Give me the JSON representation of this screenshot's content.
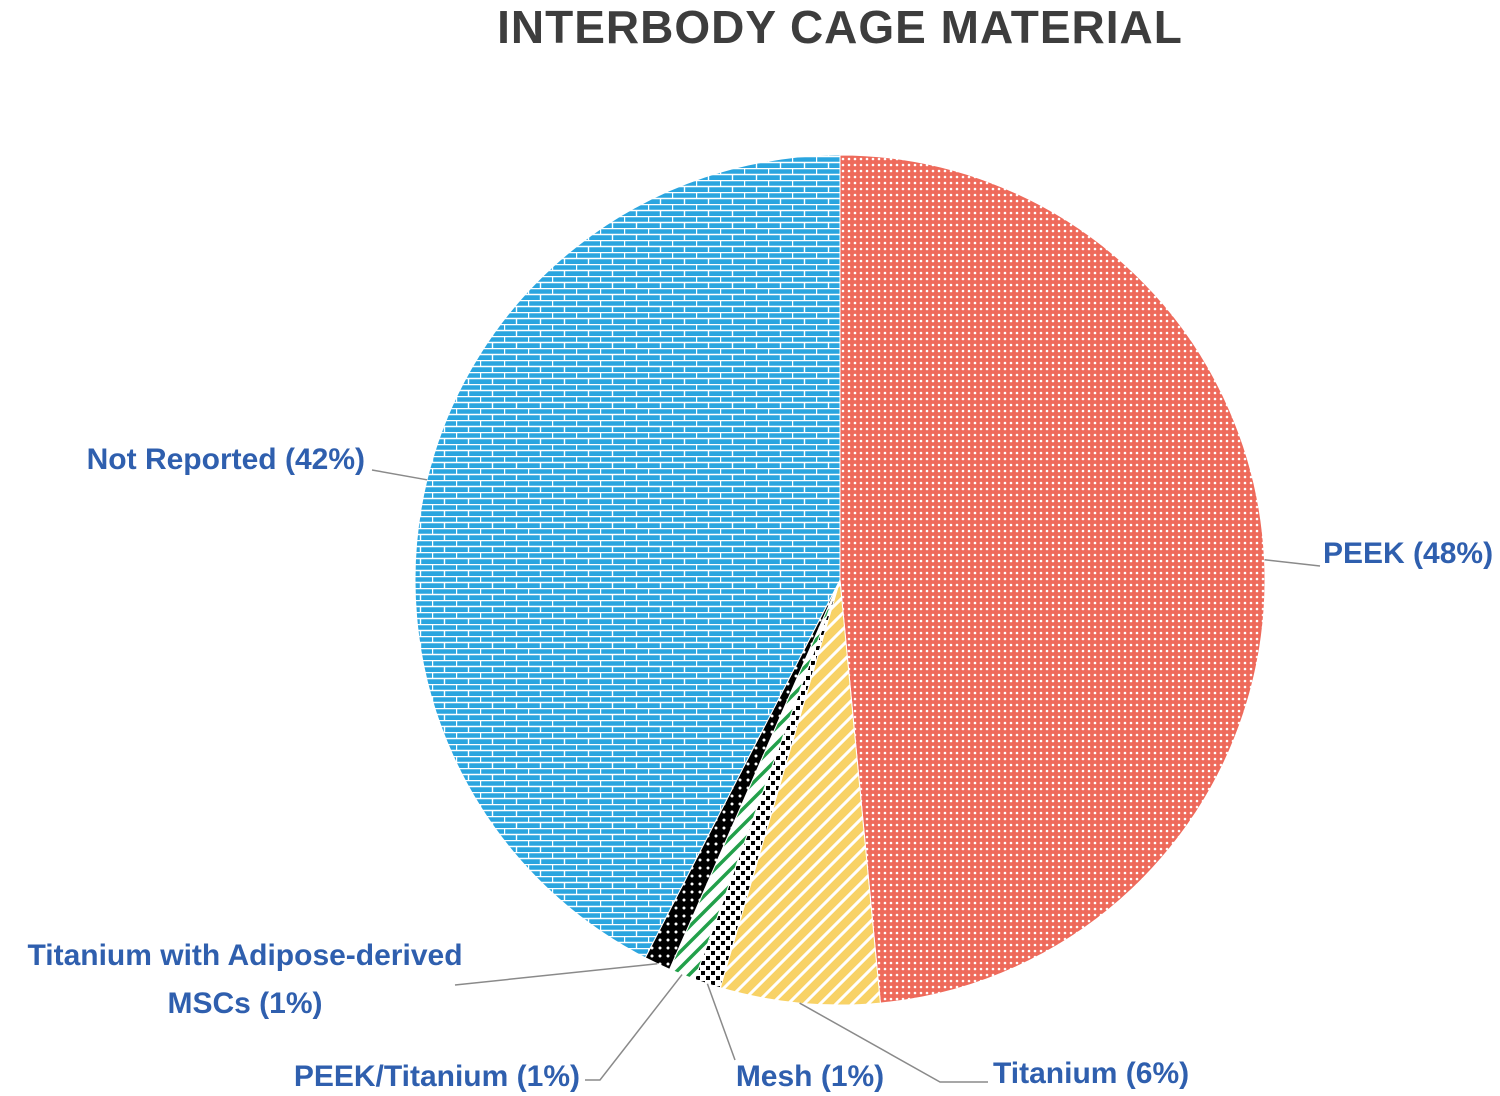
{
  "chart_data": {
    "type": "pie",
    "title": "INTERBODY CAGE MATERIAL",
    "categories": [
      "PEEK",
      "Titanium",
      "Mesh",
      "PEEK/Titanium",
      "Titanium with Adipose-derived MSCs",
      "Not Reported"
    ],
    "values": [
      48,
      6,
      1,
      1,
      1,
      42
    ],
    "value_labels": [
      "PEEK (48%)",
      "Titanium (6%)",
      "Mesh (1%)",
      "PEEK/Titanium (1%)",
      "Titanium with Adipose-derived MSCs (1%)",
      "Not Reported (42%)"
    ],
    "colors": [
      "#ee6a5b",
      "#f8d266",
      "#ffffff",
      "#ffffff",
      "#000000",
      "#2aa5df"
    ]
  }
}
